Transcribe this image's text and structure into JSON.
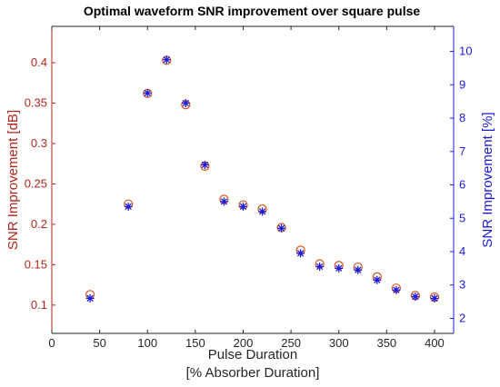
{
  "chart_data": {
    "type": "scatter",
    "title": "Optimal waveform SNR improvement over square pulse",
    "xlabel_line1": "Pulse Duration",
    "xlabel_line2": "[% Absorber Duration]",
    "ylabel_left": "SNR Improvement [dB]",
    "ylabel_right": "SNR Improvement [%]",
    "xlim": [
      0,
      420
    ],
    "ylim_left": [
      0.065,
      0.445
    ],
    "ylim_right": [
      1.55,
      10.75
    ],
    "x_ticks": [
      0,
      50,
      100,
      150,
      200,
      250,
      300,
      350,
      400
    ],
    "y_left_ticks": [
      0.1,
      0.15,
      0.2,
      0.25,
      0.3,
      0.35,
      0.4
    ],
    "y_right_ticks": [
      2,
      3,
      4,
      5,
      6,
      7,
      8,
      9,
      10
    ],
    "left_color": "#d9541a",
    "left_axis_color": "#b2261c",
    "right_color": "#1a1adb",
    "grid": false,
    "x": [
      40,
      80,
      100,
      120,
      140,
      160,
      180,
      200,
      220,
      240,
      260,
      280,
      300,
      320,
      340,
      360,
      380,
      400
    ],
    "series": [
      {
        "axis": "left",
        "marker": "circle",
        "values": [
          0.113,
          0.225,
          0.362,
          0.403,
          0.348,
          0.272,
          0.231,
          0.224,
          0.219,
          0.196,
          0.168,
          0.151,
          0.149,
          0.147,
          0.135,
          0.121,
          0.112,
          0.11
        ]
      },
      {
        "axis": "right",
        "marker": "asterisk",
        "values": [
          2.6,
          5.35,
          8.75,
          9.75,
          8.45,
          6.6,
          5.5,
          5.35,
          5.2,
          4.7,
          3.95,
          3.55,
          3.5,
          3.45,
          3.15,
          2.85,
          2.65,
          2.6
        ]
      }
    ]
  }
}
